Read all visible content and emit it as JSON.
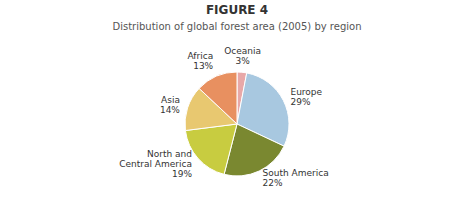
{
  "chart_data": {
    "type": "pie",
    "title": "FIGURE 4",
    "subtitle": "Distribution of global forest area (2005) by region",
    "categories": [
      "Oceania",
      "Europe",
      "South America",
      "North and\nCentral America",
      "Asia",
      "Africa"
    ],
    "values": [
      3,
      29,
      22,
      19,
      14,
      13
    ],
    "value_labels": [
      "3%",
      "29%",
      "22%",
      "19%",
      "14%",
      "13%"
    ],
    "colors": [
      "#e8a8a8",
      "#a8c8e0",
      "#7a8830",
      "#c8cc40",
      "#e8c870",
      "#e89060"
    ]
  }
}
